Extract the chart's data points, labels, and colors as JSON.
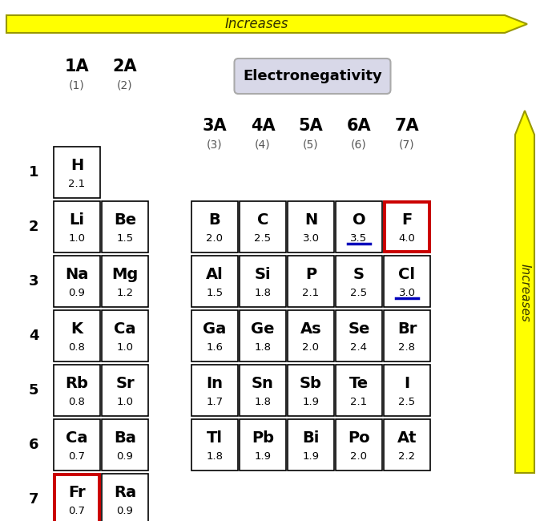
{
  "title": "Electronegativity",
  "arrow_label_h": "Increases",
  "arrow_label_v": "Increases",
  "group1_headers_A": [
    "1A",
    "2A"
  ],
  "group1_headers_num": [
    "(1)",
    "(2)"
  ],
  "group2_headers_A": [
    "3A",
    "4A",
    "5A",
    "6A",
    "7A"
  ],
  "group2_headers_num": [
    "(3)",
    "(4)",
    "(5)",
    "(6)",
    "(7)"
  ],
  "row_labels": [
    "1",
    "2",
    "3",
    "4",
    "5",
    "6",
    "7"
  ],
  "group1_elements": [
    [
      [
        "H",
        "2.1"
      ],
      [
        "",
        ""
      ]
    ],
    [
      [
        "Li",
        "1.0"
      ],
      [
        "Be",
        "1.5"
      ]
    ],
    [
      [
        "Na",
        "0.9"
      ],
      [
        "Mg",
        "1.2"
      ]
    ],
    [
      [
        "K",
        "0.8"
      ],
      [
        "Ca",
        "1.0"
      ]
    ],
    [
      [
        "Rb",
        "0.8"
      ],
      [
        "Sr",
        "1.0"
      ]
    ],
    [
      [
        "Ca",
        "0.7"
      ],
      [
        "Ba",
        "0.9"
      ]
    ],
    [
      [
        "Fr",
        "0.7"
      ],
      [
        "Ra",
        "0.9"
      ]
    ]
  ],
  "group2_elements": [
    [
      [
        "B",
        "2.0"
      ],
      [
        "C",
        "2.5"
      ],
      [
        "N",
        "3.0"
      ],
      [
        "O",
        "3.5"
      ],
      [
        "F",
        "4.0"
      ]
    ],
    [
      [
        "Al",
        "1.5"
      ],
      [
        "Si",
        "1.8"
      ],
      [
        "P",
        "2.1"
      ],
      [
        "S",
        "2.5"
      ],
      [
        "Cl",
        "3.0"
      ]
    ],
    [
      [
        "Ga",
        "1.6"
      ],
      [
        "Ge",
        "1.8"
      ],
      [
        "As",
        "2.0"
      ],
      [
        "Se",
        "2.4"
      ],
      [
        "Br",
        "2.8"
      ]
    ],
    [
      [
        "In",
        "1.7"
      ],
      [
        "Sn",
        "1.8"
      ],
      [
        "Sb",
        "1.9"
      ],
      [
        "Te",
        "2.1"
      ],
      [
        "I",
        "2.5"
      ]
    ],
    [
      [
        "Tl",
        "1.8"
      ],
      [
        "Pb",
        "1.9"
      ],
      [
        "Bi",
        "1.9"
      ],
      [
        "Po",
        "2.0"
      ],
      [
        "At",
        "2.2"
      ]
    ]
  ],
  "red_border_symbols": [
    "Fr",
    "F"
  ],
  "blue_underline_symbols": [
    "O",
    "Cl"
  ],
  "background_color": "#ffffff",
  "cell_border_color": "#000000",
  "arrow_fill_color": "#ffff00",
  "arrow_edge_color": "#999900",
  "title_box_facecolor": "#d8d8e8",
  "title_box_edgecolor": "#aaaaaa",
  "red_border_color": "#cc0000",
  "blue_underline_color": "#0000bb",
  "row_label_color": "#000000",
  "header_A_color": "#000000",
  "header_num_color": "#555555"
}
